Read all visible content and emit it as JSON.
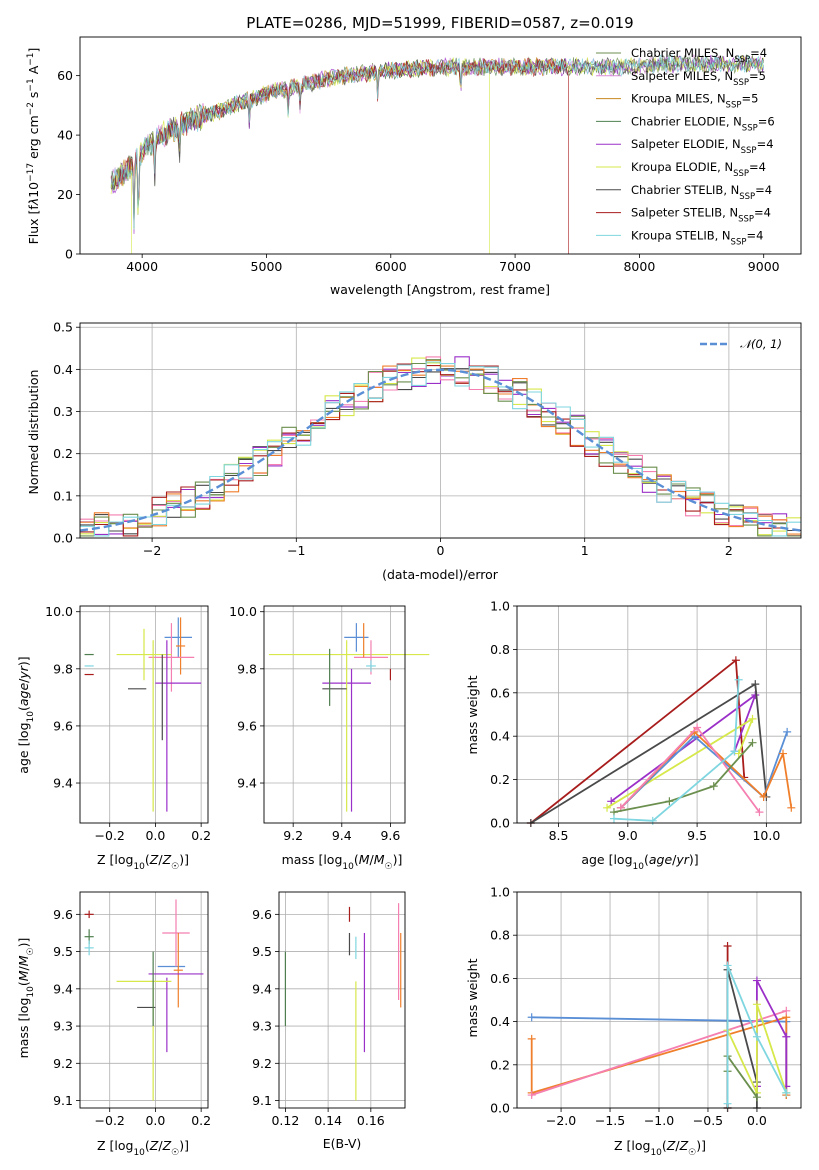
{
  "chart_data": [
    {
      "type": "line",
      "panel": "spectrum",
      "title": "PLATE=0286, MJD=51999, FIBERID=0587, z=0.019",
      "xlabel": "wavelength [Angstrom, rest frame]",
      "ylabel": "Flux [f_λ10^−17 erg cm^−2 s^−1 A^−1]",
      "xlim": [
        3500,
        9300
      ],
      "ylim": [
        0,
        73
      ],
      "xticks": [
        4000,
        5000,
        6000,
        7000,
        8000,
        9000
      ],
      "yticks": [
        0,
        20,
        40,
        60
      ],
      "grid": false,
      "legend_position": "top-right",
      "continuum": [
        [
          3750,
          24
        ],
        [
          3850,
          27
        ],
        [
          3950,
          32
        ],
        [
          4050,
          37
        ],
        [
          4200,
          41
        ],
        [
          4400,
          45
        ],
        [
          4600,
          48
        ],
        [
          4800,
          51
        ],
        [
          5000,
          54
        ],
        [
          5200,
          56
        ],
        [
          5500,
          59
        ],
        [
          5800,
          61
        ],
        [
          6100,
          62
        ],
        [
          6400,
          63
        ],
        [
          6700,
          63
        ],
        [
          7000,
          63
        ],
        [
          7300,
          63
        ],
        [
          7600,
          63
        ],
        [
          7900,
          63
        ],
        [
          8200,
          64
        ],
        [
          8500,
          64
        ],
        [
          8800,
          64
        ],
        [
          9000,
          64
        ]
      ],
      "features": [
        [
          3934,
          8
        ],
        [
          3969,
          9
        ],
        [
          4102,
          26
        ],
        [
          4300,
          34
        ],
        [
          4861,
          44
        ],
        [
          5175,
          47
        ],
        [
          5270,
          50
        ],
        [
          5895,
          53
        ],
        [
          6563,
          55
        ]
      ],
      "series": [
        {
          "name": "Chabrier MILES, N_SSP=4",
          "color": "#6b8f4e"
        },
        {
          "name": "Salpeter MILES, N_SSP=5",
          "color": "#d98cd9"
        },
        {
          "name": "Kroupa MILES, N_SSP=5",
          "color": "#c78a1e"
        },
        {
          "name": "Chabrier ELODIE, N_SSP=6",
          "color": "#4f7f4f"
        },
        {
          "name": "Salpeter ELODIE, N_SSP=4",
          "color": "#9b30c8"
        },
        {
          "name": "Kroupa ELODIE, N_SSP=4",
          "color": "#d6e84a"
        },
        {
          "name": "Chabrier STELIB, N_SSP=4",
          "color": "#4a4a4a"
        },
        {
          "name": "Salpeter STELIB, N_SSP=4",
          "color": "#a81c1c"
        },
        {
          "name": "Kroupa STELIB, N_SSP=4",
          "color": "#7fd6e0"
        }
      ]
    },
    {
      "type": "line",
      "panel": "residuals",
      "xlabel": "(data-model)/error",
      "ylabel": "Normed distribution",
      "xlim": [
        -2.5,
        2.5
      ],
      "ylim": [
        0,
        0.51
      ],
      "xticks": [
        -2,
        -1,
        0,
        1,
        2
      ],
      "yticks": [
        0.0,
        0.1,
        0.2,
        0.3,
        0.4,
        0.5
      ],
      "grid": true,
      "legend_position": "top-right",
      "gaussian_label": "𝒩(0, 1)",
      "gaussian_color": "#5a8fd6",
      "histogram_colors": [
        "#4a4a4a",
        "#9b30c8",
        "#d6e84a",
        "#f47fb0",
        "#ef7f2b",
        "#a81c1c",
        "#6b8f4e",
        "#7fd6e0"
      ],
      "bin_edges": [
        -2.5,
        -2.4,
        -2.3,
        -2.2,
        -2.1,
        -2.0,
        -1.9,
        -1.8,
        -1.7,
        -1.6,
        -1.5,
        -1.4,
        -1.3,
        -1.2,
        -1.1,
        -1.0,
        -0.9,
        -0.8,
        -0.7,
        -0.6,
        -0.5,
        -0.4,
        -0.3,
        -0.2,
        -0.1,
        0.0,
        0.1,
        0.2,
        0.3,
        0.4,
        0.5,
        0.6,
        0.7,
        0.8,
        0.9,
        1.0,
        1.1,
        1.2,
        1.3,
        1.4,
        1.5,
        1.6,
        1.7,
        1.8,
        1.9,
        2.0,
        2.1,
        2.2,
        2.3,
        2.4,
        2.5
      ]
    },
    {
      "type": "scatter",
      "panel": "age_vs_Z",
      "xlabel": "Z [log10(Z/Z☉)]",
      "ylabel": "age  [log10(age/yr)]",
      "xlim": [
        -0.33,
        0.23
      ],
      "ylim": [
        9.26,
        10.02
      ],
      "xticks": [
        -0.2,
        0.0,
        0.2
      ],
      "yticks": [
        9.4,
        9.6,
        9.8,
        10.0
      ],
      "grid": true,
      "errorbars": [
        {
          "x": -0.29,
          "y": 9.85,
          "xerr": 0.02,
          "yerr": 0.0,
          "color": "#4f7f4f"
        },
        {
          "x": -0.29,
          "y": 9.81,
          "xerr": 0.02,
          "yerr": 0.0,
          "color": "#7fd6e0"
        },
        {
          "x": -0.29,
          "y": 9.78,
          "xerr": 0.02,
          "yerr": 0.0,
          "color": "#a81c1c"
        },
        {
          "x": 0.1,
          "y": 9.91,
          "xerr": 0.06,
          "yerr": 0.07,
          "color": "#5a8fd6"
        },
        {
          "x": 0.11,
          "y": 9.88,
          "xerr": 0.02,
          "yerr": 0.1,
          "color": "#ef7f2b"
        },
        {
          "x": 0.07,
          "y": 9.84,
          "xerr": 0.1,
          "yerr": 0.12,
          "color": "#f47fb0"
        },
        {
          "x": -0.05,
          "y": 9.85,
          "xerr": 0.12,
          "yerr": 0.09,
          "color": "#d6e84a"
        },
        {
          "x": 0.1,
          "y": 9.75,
          "xerr": 0.1,
          "yerr": 0.0,
          "color": "#9b30c8"
        },
        {
          "x": 0.05,
          "y": 9.6,
          "xerr": 0.0,
          "yerr": 0.3,
          "color": "#9b30c8"
        },
        {
          "x": -0.08,
          "y": 9.73,
          "xerr": 0.04,
          "yerr": 0.0,
          "color": "#4a4a4a"
        },
        {
          "x": -0.01,
          "y": 9.6,
          "xerr": 0.0,
          "yerr": 0.3,
          "color": "#d6e84a"
        },
        {
          "x": 0.03,
          "y": 9.7,
          "xerr": 0.0,
          "yerr": 0.15,
          "color": "#4a4a4a"
        }
      ]
    },
    {
      "type": "scatter",
      "panel": "age_vs_mass",
      "xlabel": "mass [log10(M/M☉)]",
      "xlim": [
        9.08,
        9.66
      ],
      "ylim": [
        9.26,
        10.02
      ],
      "xticks": [
        9.2,
        9.4,
        9.6
      ],
      "yticks": [
        9.4,
        9.6,
        9.8,
        10.0
      ],
      "grid": true,
      "errorbars": [
        {
          "x": 9.46,
          "y": 9.91,
          "xerr": 0.05,
          "yerr": 0.05,
          "color": "#5a8fd6"
        },
        {
          "x": 9.43,
          "y": 9.85,
          "xerr": 0.33,
          "yerr": 0.0,
          "color": "#d6e84a"
        },
        {
          "x": 9.52,
          "y": 9.84,
          "xerr": 0.07,
          "yerr": 0.06,
          "color": "#f47fb0"
        },
        {
          "x": 9.6,
          "y": 9.78,
          "xerr": 0.0,
          "yerr": 0.02,
          "color": "#a81c1c"
        },
        {
          "x": 9.52,
          "y": 9.81,
          "xerr": 0.02,
          "yerr": 0.02,
          "color": "#7fd6e0"
        },
        {
          "x": 9.42,
          "y": 9.75,
          "xerr": 0.1,
          "yerr": 0.0,
          "color": "#9b30c8"
        },
        {
          "x": 9.42,
          "y": 9.6,
          "xerr": 0.0,
          "yerr": 0.3,
          "color": "#d6e84a"
        },
        {
          "x": 9.44,
          "y": 9.55,
          "xerr": 0.0,
          "yerr": 0.25,
          "color": "#9b30c8"
        },
        {
          "x": 9.37,
          "y": 9.73,
          "xerr": 0.05,
          "yerr": 0.0,
          "color": "#4a4a4a"
        },
        {
          "x": 9.35,
          "y": 9.77,
          "xerr": 0.0,
          "yerr": 0.1,
          "color": "#4f7f4f"
        },
        {
          "x": 9.49,
          "y": 9.9,
          "xerr": 0.0,
          "yerr": 0.06,
          "color": "#ef7f2b"
        }
      ]
    },
    {
      "type": "line",
      "panel": "weight_vs_age",
      "xlabel": "age  [log10(age/yr)]",
      "ylabel": "mass weight",
      "xlim": [
        8.2,
        10.25
      ],
      "ylim": [
        0,
        1.0
      ],
      "xticks": [
        8.5,
        9.0,
        9.5,
        10.0
      ],
      "yticks": [
        0.0,
        0.2,
        0.4,
        0.6,
        0.8,
        1.0
      ],
      "grid": true,
      "series": [
        {
          "color": "#a81c1c",
          "x": [
            8.3,
            9.78,
            9.84
          ],
          "y": [
            0.0,
            0.75,
            0.21
          ]
        },
        {
          "color": "#9b30c8",
          "x": [
            8.88,
            9.92,
            9.77
          ],
          "y": [
            0.1,
            0.59,
            0.33
          ]
        },
        {
          "color": "#4a4a4a",
          "x": [
            8.3,
            9.92,
            10.0
          ],
          "y": [
            0.0,
            0.64,
            0.12
          ]
        },
        {
          "color": "#d6e84a",
          "x": [
            8.85,
            9.9,
            9.8
          ],
          "y": [
            0.07,
            0.48,
            0.32
          ]
        },
        {
          "color": "#5a8fd6",
          "x": [
            8.95,
            9.48,
            9.98,
            10.15
          ],
          "y": [
            0.07,
            0.4,
            0.12,
            0.42
          ]
        },
        {
          "color": "#ef7f2b",
          "x": [
            8.95,
            9.48,
            9.98,
            10.12,
            10.18
          ],
          "y": [
            0.07,
            0.42,
            0.12,
            0.32,
            0.07
          ]
        },
        {
          "color": "#f47fb0",
          "x": [
            8.95,
            9.5,
            9.95
          ],
          "y": [
            0.07,
            0.44,
            0.05
          ]
        },
        {
          "color": "#6b8f4e",
          "x": [
            8.9,
            9.3,
            9.62,
            9.9
          ],
          "y": [
            0.05,
            0.1,
            0.17,
            0.37
          ]
        },
        {
          "color": "#7fd6e0",
          "x": [
            8.9,
            9.18,
            9.77,
            9.8
          ],
          "y": [
            0.02,
            0.01,
            0.33,
            0.66
          ]
        }
      ]
    },
    {
      "type": "scatter",
      "panel": "mass_vs_Z",
      "xlabel": "Z [log10(Z/Z☉)]",
      "ylabel": "mass [log10(M/M☉)]",
      "xlim": [
        -0.33,
        0.23
      ],
      "ylim": [
        9.08,
        9.66
      ],
      "xticks": [
        -0.2,
        0.0,
        0.2
      ],
      "yticks": [
        9.1,
        9.2,
        9.3,
        9.4,
        9.5,
        9.6
      ],
      "grid": true,
      "errorbars": [
        {
          "x": -0.29,
          "y": 9.6,
          "xerr": 0.02,
          "yerr": 0.01,
          "color": "#a81c1c"
        },
        {
          "x": -0.29,
          "y": 9.54,
          "xerr": 0.02,
          "yerr": 0.02,
          "color": "#4f7f4f"
        },
        {
          "x": -0.29,
          "y": 9.51,
          "xerr": 0.02,
          "yerr": 0.02,
          "color": "#7fd6e0"
        },
        {
          "x": 0.07,
          "y": 9.46,
          "xerr": 0.06,
          "yerr": 0.0,
          "color": "#5a8fd6"
        },
        {
          "x": 0.09,
          "y": 9.55,
          "xerr": 0.06,
          "yerr": 0.09,
          "color": "#f47fb0"
        },
        {
          "x": 0.1,
          "y": 9.45,
          "xerr": 0.02,
          "yerr": 0.1,
          "color": "#ef7f2b"
        },
        {
          "x": 0.09,
          "y": 9.44,
          "xerr": 0.12,
          "yerr": 0.0,
          "color": "#9b30c8"
        },
        {
          "x": 0.05,
          "y": 9.33,
          "xerr": 0.0,
          "yerr": 0.1,
          "color": "#9b30c8"
        },
        {
          "x": -0.05,
          "y": 9.42,
          "xerr": 0.12,
          "yerr": 0.0,
          "color": "#d6e84a"
        },
        {
          "x": -0.01,
          "y": 9.26,
          "xerr": 0.0,
          "yerr": 0.16,
          "color": "#d6e84a"
        },
        {
          "x": -0.04,
          "y": 9.35,
          "xerr": 0.04,
          "yerr": 0.0,
          "color": "#4a4a4a"
        },
        {
          "x": -0.01,
          "y": 9.4,
          "xerr": 0.0,
          "yerr": 0.1,
          "color": "#4f7f4f"
        }
      ]
    },
    {
      "type": "scatter",
      "panel": "mass_vs_EBV",
      "xlabel": "E(B-V)",
      "xlim": [
        0.117,
        0.176
      ],
      "ylim": [
        9.08,
        9.66
      ],
      "xticks": [
        0.12,
        0.14,
        0.16
      ],
      "yticks": [
        9.1,
        9.2,
        9.3,
        9.4,
        9.5,
        9.6
      ],
      "grid": true,
      "errorbars": [
        {
          "x": 0.12,
          "y": 9.4,
          "xerr": 0.0,
          "yerr": 0.1,
          "color": "#4f7f4f"
        },
        {
          "x": 0.15,
          "y": 9.6,
          "xerr": 0.0,
          "yerr": 0.02,
          "color": "#a81c1c"
        },
        {
          "x": 0.15,
          "y": 9.52,
          "xerr": 0.0,
          "yerr": 0.03,
          "color": "#4a4a4a"
        },
        {
          "x": 0.153,
          "y": 9.51,
          "xerr": 0.0,
          "yerr": 0.03,
          "color": "#7fd6e0"
        },
        {
          "x": 0.153,
          "y": 9.26,
          "xerr": 0.0,
          "yerr": 0.16,
          "color": "#d6e84a"
        },
        {
          "x": 0.157,
          "y": 9.39,
          "xerr": 0.0,
          "yerr": 0.16,
          "color": "#9b30c8"
        },
        {
          "x": 0.173,
          "y": 9.5,
          "xerr": 0.0,
          "yerr": 0.13,
          "color": "#f47fb0"
        },
        {
          "x": 0.174,
          "y": 9.45,
          "xerr": 0.0,
          "yerr": 0.1,
          "color": "#ef7f2b"
        }
      ]
    },
    {
      "type": "line",
      "panel": "weight_vs_Z",
      "xlabel": "Z [log10(Z/Z☉)]",
      "ylabel": "mass weight",
      "xlim": [
        -2.45,
        0.45
      ],
      "ylim": [
        0,
        1.0
      ],
      "xticks": [
        -2.0,
        -1.5,
        -1.0,
        -0.5,
        0.0
      ],
      "yticks": [
        0.0,
        0.2,
        0.4,
        0.6,
        0.8,
        1.0
      ],
      "grid": true,
      "series": [
        {
          "color": "#5a8fd6",
          "x": [
            -2.3,
            0.3,
            0.3
          ],
          "y": [
            0.42,
            0.4,
            0.06
          ]
        },
        {
          "color": "#ef7f2b",
          "x": [
            -2.3,
            -2.3,
            0.3,
            0.3
          ],
          "y": [
            0.32,
            0.07,
            0.42,
            0.06
          ]
        },
        {
          "color": "#f47fb0",
          "x": [
            -2.3,
            0.3
          ],
          "y": [
            0.06,
            0.45
          ]
        },
        {
          "color": "#a81c1c",
          "x": [
            -0.3,
            -0.3
          ],
          "y": [
            0.0,
            0.75
          ]
        },
        {
          "color": "#9b30c8",
          "x": [
            0.0,
            0.0,
            0.3,
            0.3
          ],
          "y": [
            0.1,
            0.59,
            0.33,
            0.1
          ]
        },
        {
          "color": "#4a4a4a",
          "x": [
            -0.3,
            -0.3,
            0.0,
            0.0
          ],
          "y": [
            0.0,
            0.64,
            0.12,
            0.0
          ]
        },
        {
          "color": "#d6e84a",
          "x": [
            -0.3,
            0.0,
            0.0,
            0.3
          ],
          "y": [
            0.36,
            0.07,
            0.48,
            0.07
          ]
        },
        {
          "color": "#6b8f4e",
          "x": [
            -0.3,
            -0.3,
            0.0
          ],
          "y": [
            0.17,
            0.24,
            0.05
          ]
        },
        {
          "color": "#7fd6e0",
          "x": [
            -0.3,
            -0.3,
            0.0,
            0.3
          ],
          "y": [
            0.02,
            0.66,
            0.33,
            0.07
          ]
        }
      ]
    }
  ]
}
